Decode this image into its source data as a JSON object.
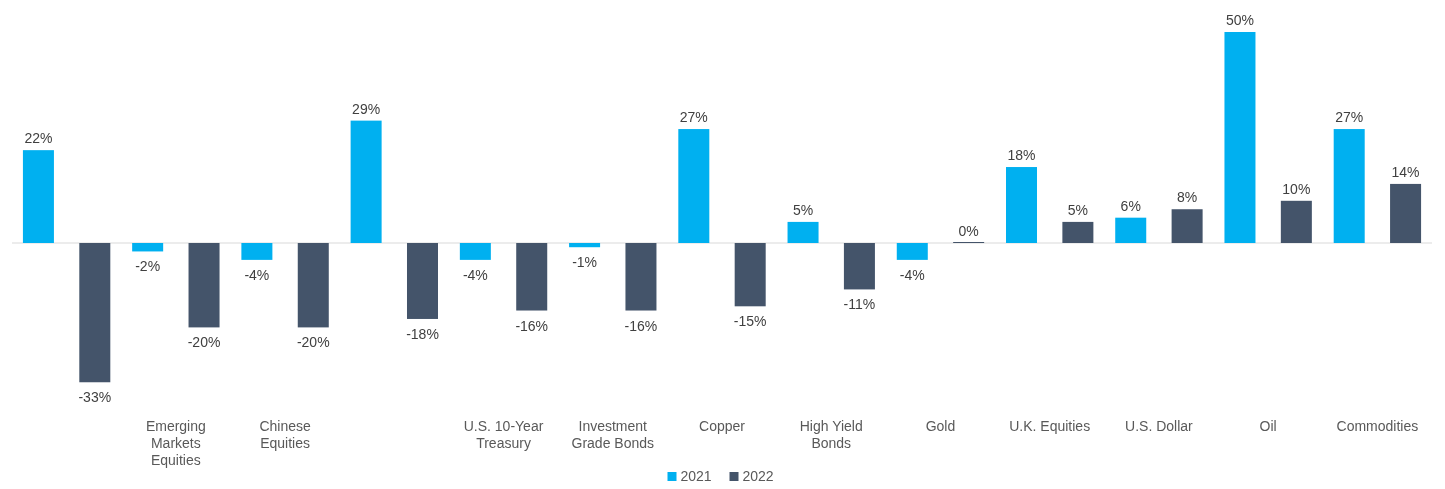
{
  "chart_data": {
    "type": "bar",
    "categories": [
      null,
      "Emerging Markets Equities",
      "Chinese Equities",
      null,
      "U.S. 10-Year Treasury",
      "Investment Grade Bonds",
      "Copper",
      "High Yield Bonds",
      "Gold",
      "U.K. Equities",
      "U.S. Dollar",
      "Oil",
      "Commodities"
    ],
    "series": [
      {
        "name": "2021",
        "color": "#00b0f0",
        "values": [
          22,
          -2,
          -4,
          29,
          -4,
          -1,
          27,
          5,
          -4,
          18,
          6,
          50,
          27
        ],
        "value_labels": [
          "22%",
          "-2%",
          "-4%",
          "29%",
          "-4%",
          "-1%",
          "27%",
          "5%",
          "-4%",
          "18%",
          "6%",
          "50%",
          "27%"
        ]
      },
      {
        "name": "2022",
        "color": "#44546a",
        "values": [
          -33,
          -20,
          -20,
          -18,
          -16,
          -16,
          -15,
          -11,
          0,
          5,
          8,
          10,
          14
        ],
        "value_labels": [
          "-33%",
          "-20%",
          "-20%",
          "-18%",
          "-16%",
          "-16%",
          "-15%",
          "-11%",
          "0%",
          "5%",
          "8%",
          "10%",
          "14%"
        ]
      }
    ],
    "legend": "bottom",
    "grid": false
  }
}
